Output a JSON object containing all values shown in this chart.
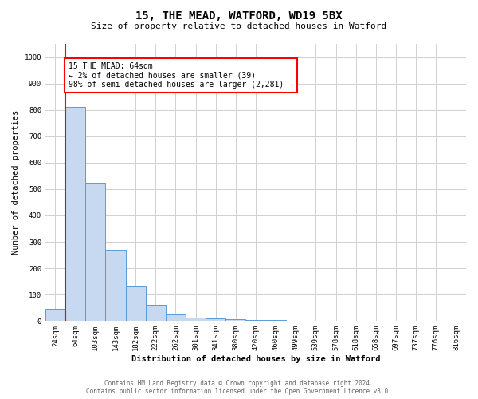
{
  "title_line1": "15, THE MEAD, WATFORD, WD19 5BX",
  "title_line2": "Size of property relative to detached houses in Watford",
  "xlabel": "Distribution of detached houses by size in Watford",
  "ylabel": "Number of detached properties",
  "categories": [
    "24sqm",
    "64sqm",
    "103sqm",
    "143sqm",
    "182sqm",
    "222sqm",
    "262sqm",
    "301sqm",
    "341sqm",
    "380sqm",
    "420sqm",
    "460sqm",
    "499sqm",
    "539sqm",
    "578sqm",
    "618sqm",
    "658sqm",
    "697sqm",
    "737sqm",
    "776sqm",
    "816sqm"
  ],
  "values": [
    46,
    810,
    525,
    270,
    130,
    62,
    26,
    13,
    10,
    8,
    4,
    3,
    0,
    0,
    0,
    0,
    0,
    0,
    0,
    0,
    0
  ],
  "bar_color": "#c6d9f0",
  "bar_edge_color": "#5b9bd5",
  "red_line_index": 1,
  "annotation_line1": "15 THE MEAD: 64sqm",
  "annotation_line2": "← 2% of detached houses are smaller (39)",
  "annotation_line3": "98% of semi-detached houses are larger (2,281) →",
  "annotation_box_color": "white",
  "annotation_box_edge_color": "red",
  "ylim": [
    0,
    1050
  ],
  "yticks": [
    0,
    100,
    200,
    300,
    400,
    500,
    600,
    700,
    800,
    900,
    1000
  ],
  "footer_line1": "Contains HM Land Registry data © Crown copyright and database right 2024.",
  "footer_line2": "Contains public sector information licensed under the Open Government Licence v3.0.",
  "background_color": "white",
  "grid_color": "#d0d0d0",
  "title_fontsize": 10,
  "subtitle_fontsize": 8,
  "axis_label_fontsize": 7.5,
  "tick_fontsize": 6.5,
  "annotation_fontsize": 7,
  "footer_fontsize": 5.5
}
